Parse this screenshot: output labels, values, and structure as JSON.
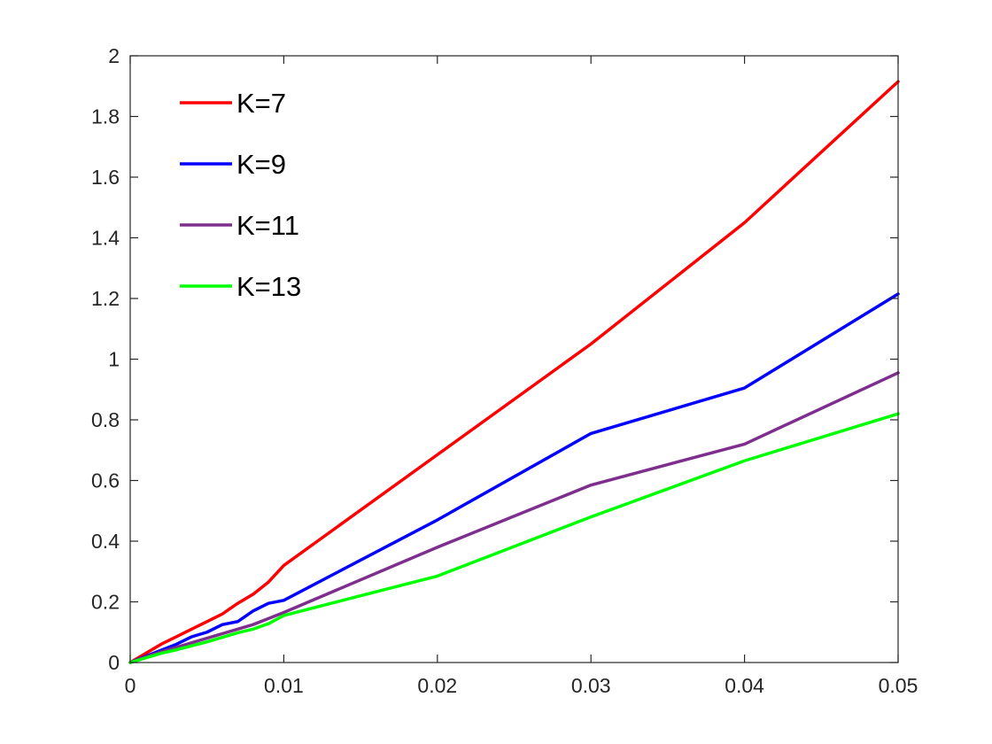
{
  "chart_data": {
    "type": "line",
    "title": "",
    "xlabel": "",
    "ylabel": "",
    "xlim": [
      0,
      0.05
    ],
    "ylim": [
      0,
      2
    ],
    "xticks": [
      "0",
      "0.01",
      "0.02",
      "0.03",
      "0.04",
      "0.05"
    ],
    "yticks": [
      "0",
      "0.2",
      "0.4",
      "0.6",
      "0.8",
      "1",
      "1.2",
      "1.4",
      "1.6",
      "1.8",
      "2"
    ],
    "grid": false,
    "legend_position": "top-left",
    "series": [
      {
        "name": "K=7",
        "color": "#ff0000",
        "x": [
          0,
          0.001,
          0.002,
          0.003,
          0.004,
          0.005,
          0.006,
          0.007,
          0.008,
          0.009,
          0.01,
          0.02,
          0.03,
          0.04,
          0.05
        ],
        "y": [
          0,
          0.03,
          0.06,
          0.085,
          0.11,
          0.135,
          0.16,
          0.195,
          0.225,
          0.265,
          0.32,
          0.685,
          1.05,
          1.45,
          1.915
        ]
      },
      {
        "name": "K=9",
        "color": "#0000ff",
        "x": [
          0,
          0.001,
          0.002,
          0.003,
          0.004,
          0.005,
          0.006,
          0.007,
          0.008,
          0.009,
          0.01,
          0.02,
          0.03,
          0.04,
          0.05
        ],
        "y": [
          0,
          0.02,
          0.04,
          0.06,
          0.085,
          0.1,
          0.125,
          0.135,
          0.17,
          0.195,
          0.205,
          0.47,
          0.755,
          0.905,
          1.215
        ]
      },
      {
        "name": "K=11",
        "color": "#7e2f8e",
        "x": [
          0,
          0.001,
          0.002,
          0.003,
          0.004,
          0.005,
          0.006,
          0.007,
          0.008,
          0.009,
          0.01,
          0.02,
          0.03,
          0.04,
          0.05
        ],
        "y": [
          0,
          0.018,
          0.035,
          0.05,
          0.065,
          0.08,
          0.095,
          0.11,
          0.125,
          0.145,
          0.165,
          0.38,
          0.585,
          0.72,
          0.955
        ]
      },
      {
        "name": "K=13",
        "color": "#00ff00",
        "x": [
          0,
          0.001,
          0.002,
          0.003,
          0.004,
          0.005,
          0.006,
          0.007,
          0.008,
          0.009,
          0.01,
          0.02,
          0.03,
          0.04,
          0.05
        ],
        "y": [
          0,
          0.015,
          0.03,
          0.042,
          0.055,
          0.068,
          0.083,
          0.098,
          0.11,
          0.128,
          0.155,
          0.285,
          0.48,
          0.665,
          0.82
        ]
      }
    ]
  }
}
